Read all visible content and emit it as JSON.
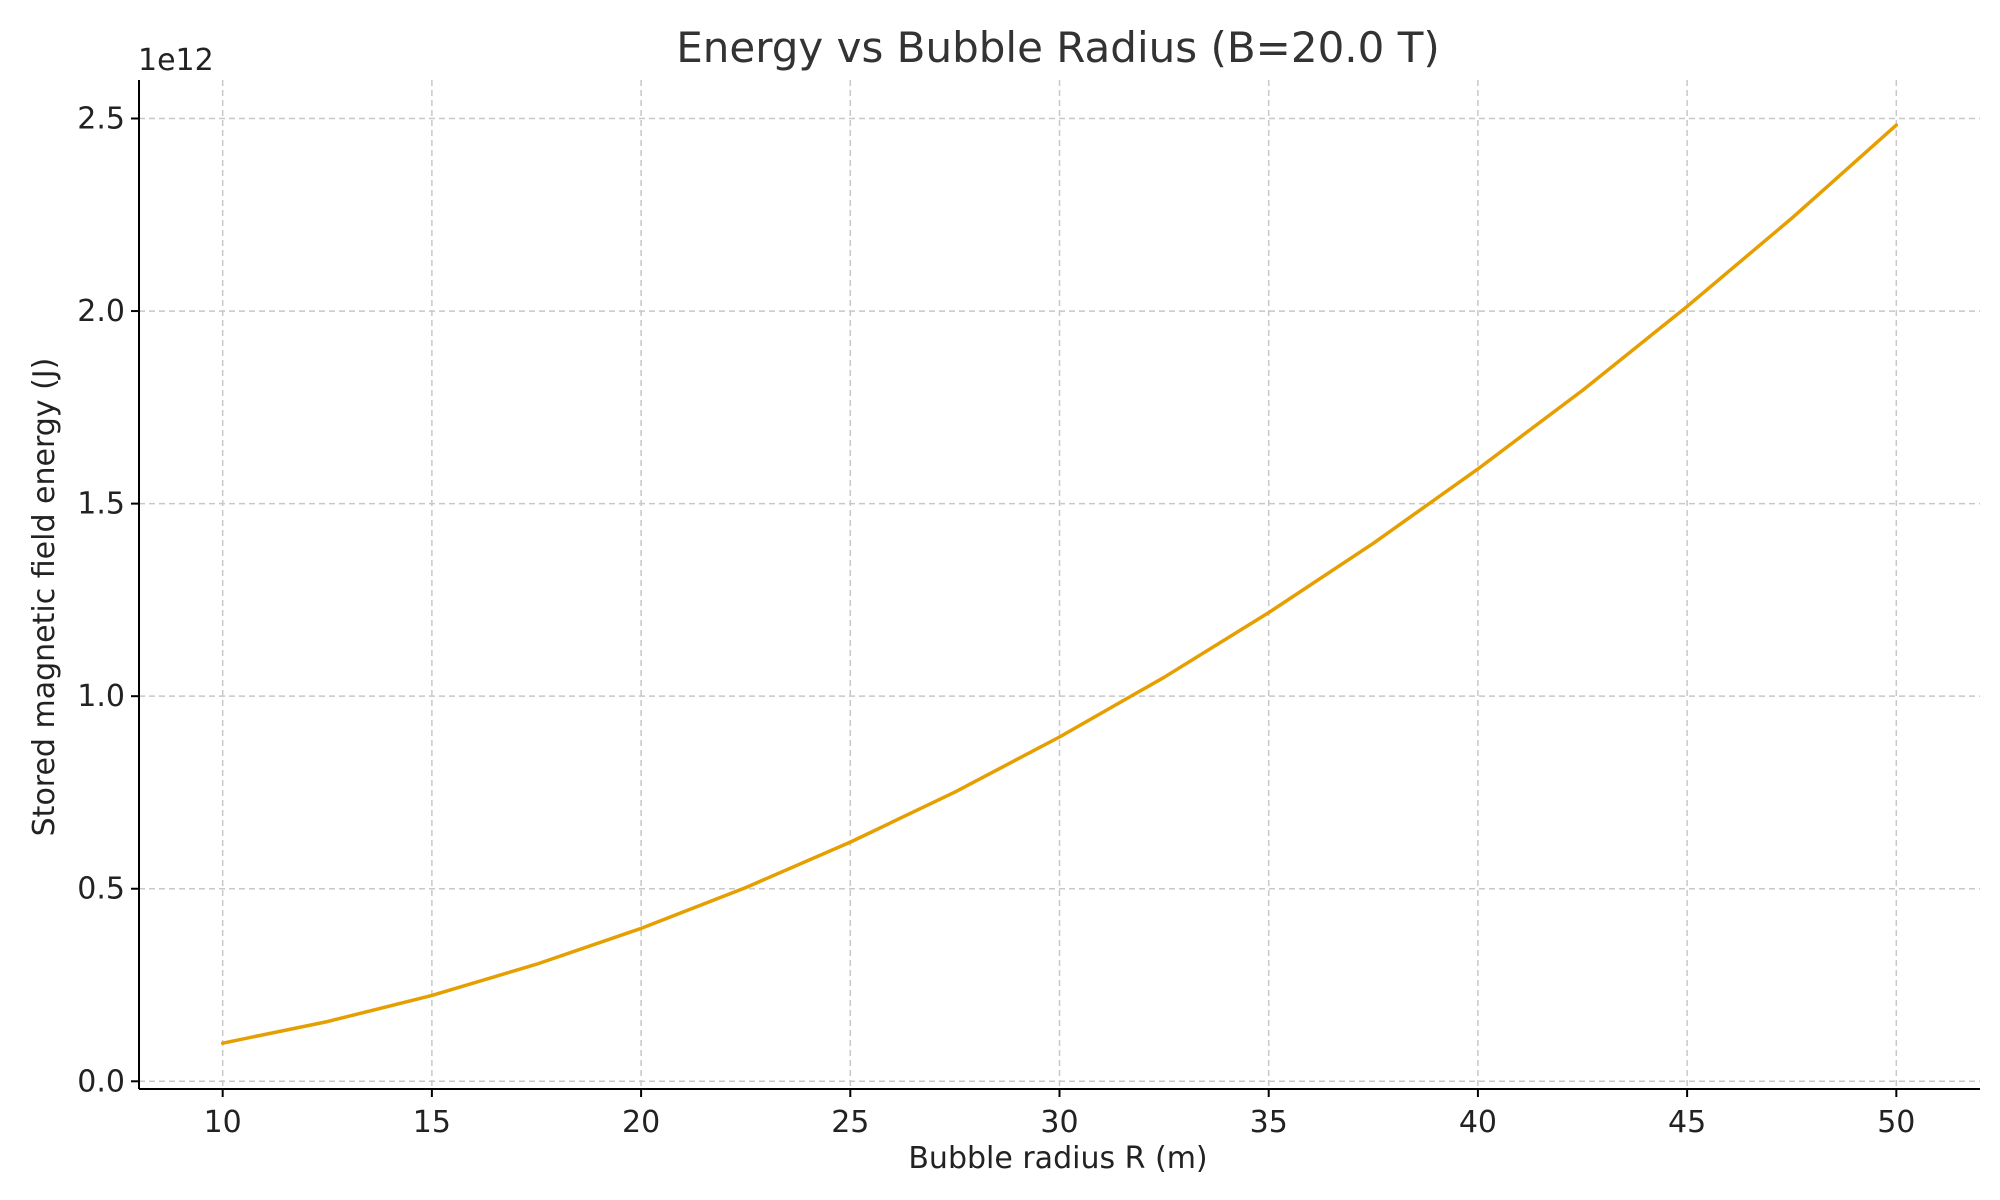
{
  "chart_data": {
    "type": "line",
    "title": "Energy vs Bubble Radius (B=20.0 T)",
    "xlabel": "Bubble radius R (m)",
    "ylabel": "Stored magnetic field energy (J)",
    "y_offset_label": "1e12",
    "xlim": [
      8,
      52
    ],
    "ylim": [
      -20000000000.0,
      2600000000000.0
    ],
    "x_ticks": [
      10,
      15,
      20,
      25,
      30,
      35,
      40,
      45,
      50
    ],
    "x_tick_labels": [
      "10",
      "15",
      "20",
      "25",
      "30",
      "35",
      "40",
      "45",
      "50"
    ],
    "y_ticks": [
      0,
      500000000000.0,
      1000000000000.0,
      1500000000000.0,
      2000000000000.0,
      2500000000000.0
    ],
    "y_tick_labels": [
      "0.0",
      "0.5",
      "1.0",
      "1.5",
      "2.0",
      "2.5"
    ],
    "grid": true,
    "series": [
      {
        "color": "#E69F00",
        "x": [
          10,
          12.5,
          15,
          17.5,
          20,
          22.5,
          25,
          27.5,
          30,
          32.5,
          35,
          37.5,
          40,
          42.5,
          45,
          47.5,
          50
        ],
        "y": [
          99000000000.0,
          155000000000.0,
          223000000000.0,
          304000000000.0,
          397000000000.0,
          503000000000.0,
          621000000000.0,
          751000000000.0,
          894000000000.0,
          1049000000000.0,
          1217000000000.0,
          1397000000000.0,
          1590000000000.0,
          1794000000000.0,
          2012000000000.0,
          2241000000000.0,
          2483000000000.0
        ]
      }
    ]
  }
}
